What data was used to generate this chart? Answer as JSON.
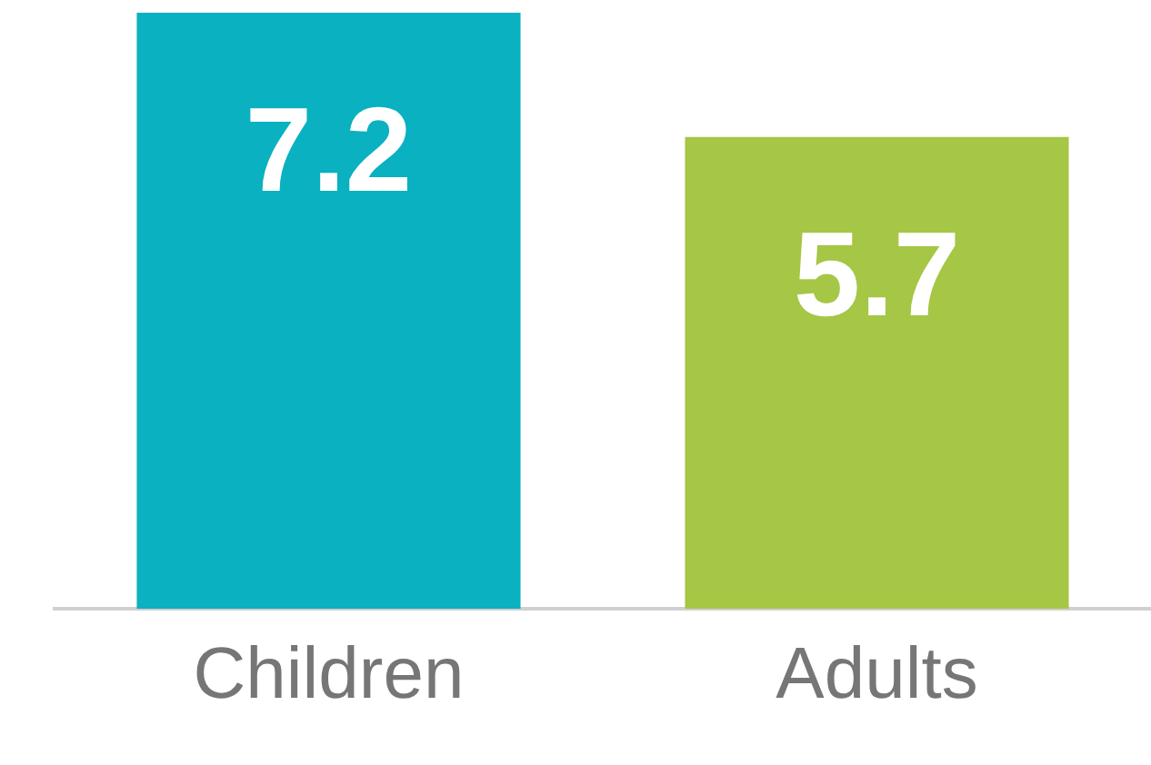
{
  "chart_data": {
    "type": "bar",
    "categories": [
      "Children",
      "Adults"
    ],
    "values": [
      7.2,
      5.7
    ],
    "colors": [
      "#0ab1c0",
      "#a6c645"
    ],
    "data_labels": true,
    "grid": false,
    "legend": false,
    "tick_labels": "x"
  }
}
